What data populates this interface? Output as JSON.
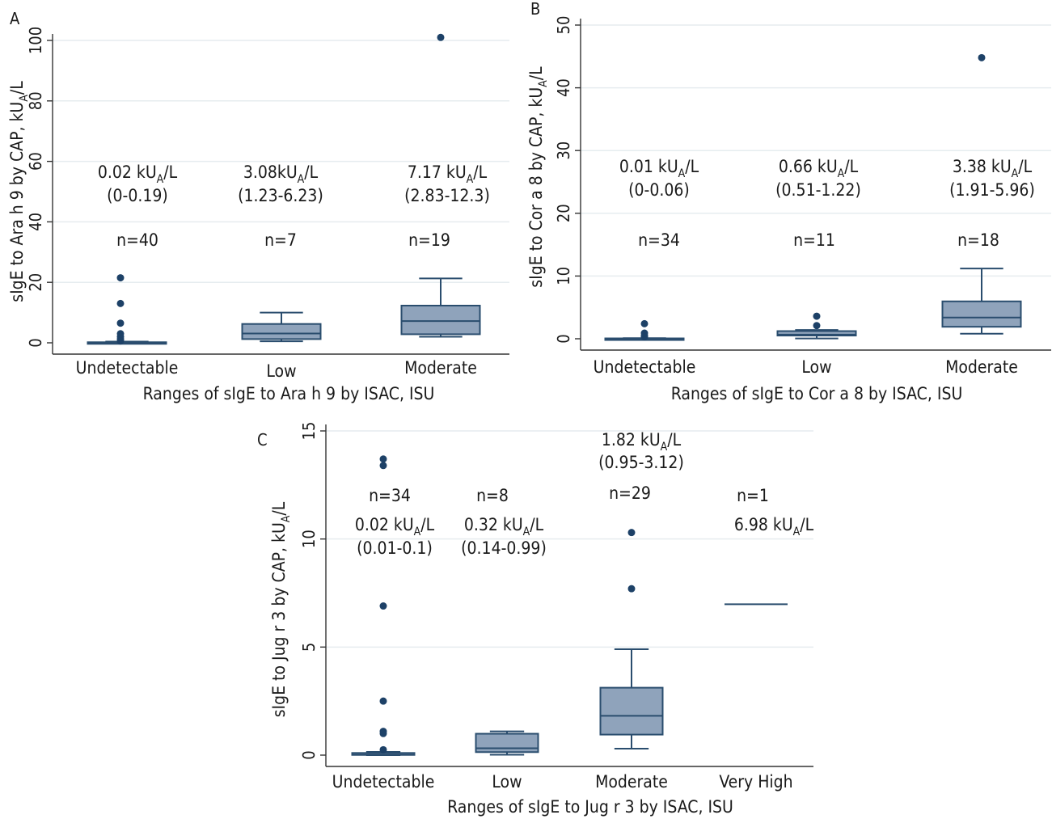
{
  "chart_data": [
    {
      "type": "box",
      "panel": "A",
      "xlabel": "Ranges of sIgE to Ara h 9 by ISAC, ISU",
      "ylabel": {
        "pre": "sIgE to Ara h 9 by CAP, kU",
        "sub": "A",
        "post": "/L"
      },
      "ylim": [
        0,
        100
      ],
      "yticks": [
        0,
        20,
        40,
        60,
        80,
        100
      ],
      "grid": true,
      "categories": [
        "Undetectable",
        "Low",
        "Moderate"
      ],
      "boxes": [
        {
          "category": "Undetectable",
          "n": "n=40",
          "median_label": {
            "pre": "0.02 kU",
            "sub": "A",
            "post": "/L"
          },
          "iqr_label": "(0-0.19)",
          "whisker_low": 0,
          "q1": 0,
          "median": 0.02,
          "q3": 0.19,
          "whisker_high": 0.4,
          "outliers": [
            21.5,
            13,
            6.5,
            3,
            2,
            1.2,
            0.6
          ]
        },
        {
          "category": "Low",
          "n": "n=7",
          "median_label": {
            "pre": "3.08kU",
            "sub": "A",
            "post": "/L"
          },
          "iqr_label": "(1.23-6.23)",
          "whisker_low": 0.5,
          "q1": 1.23,
          "median": 3.08,
          "q3": 6.23,
          "whisker_high": 10,
          "outliers": []
        },
        {
          "category": "Moderate",
          "n": "n=19",
          "median_label": {
            "pre": "7.17 kU",
            "sub": "A",
            "post": "/L"
          },
          "iqr_label": "(2.83-12.3)",
          "whisker_low": 2,
          "q1": 2.83,
          "median": 7.17,
          "q3": 12.3,
          "whisker_high": 21.3,
          "outliers": [
            101
          ]
        }
      ]
    },
    {
      "type": "box",
      "panel": "B",
      "xlabel": "Ranges of sIgE to Cor a 8 by ISAC, ISU",
      "ylabel": {
        "pre": "sIgE to Cor a 8 by CAP, kU",
        "sub": "A",
        "post": "/L"
      },
      "ylim": [
        0,
        50
      ],
      "yticks": [
        0,
        10,
        20,
        30,
        40,
        50
      ],
      "grid": true,
      "categories": [
        "Undetectable",
        "Low",
        "Moderate"
      ],
      "boxes": [
        {
          "category": "Undetectable",
          "n": "n=34",
          "median_label": {
            "pre": "0.01 kU",
            "sub": "A",
            "post": "/L"
          },
          "iqr_label": "(0-0.06)",
          "whisker_low": 0,
          "q1": 0,
          "median": 0.01,
          "q3": 0.06,
          "whisker_high": 0.1,
          "outliers": [
            2.4,
            0.9,
            0.5,
            0.3
          ]
        },
        {
          "category": "Low",
          "n": "n=11",
          "median_label": {
            "pre": "0.66 kU",
            "sub": "A",
            "post": "/L"
          },
          "iqr_label": "(0.51-1.22)",
          "whisker_low": 0.05,
          "q1": 0.51,
          "median": 0.66,
          "q3": 1.22,
          "whisker_high": 1.4,
          "outliers": [
            3.6,
            2.1
          ]
        },
        {
          "category": "Moderate",
          "n": "n=18",
          "median_label": {
            "pre": "3.38 kU",
            "sub": "A",
            "post": "/L"
          },
          "iqr_label": "(1.91-5.96)",
          "whisker_low": 0.8,
          "q1": 1.91,
          "median": 3.38,
          "q3": 5.96,
          "whisker_high": 11.2,
          "outliers": [
            44.8
          ]
        }
      ]
    },
    {
      "type": "box",
      "panel": "C",
      "xlabel": "Ranges of sIgE to Jug r 3 by ISAC, ISU",
      "ylabel": {
        "pre": "sIgE to Jug r 3 by CAP, kU",
        "sub": "A",
        "post": "/L"
      },
      "ylim": [
        0,
        15
      ],
      "yticks": [
        0,
        5,
        10,
        15
      ],
      "grid": true,
      "categories": [
        "Undetectable",
        "Low",
        "Moderate",
        "Very High"
      ],
      "boxes": [
        {
          "category": "Undetectable",
          "n": "n=34",
          "median_label": {
            "pre": "0.02 kU",
            "sub": "A",
            "post": "/L"
          },
          "iqr_label": "(0.01-0.1)",
          "whisker_low": 0,
          "q1": 0.01,
          "median": 0.02,
          "q3": 0.1,
          "whisker_high": 0.15,
          "outliers": [
            13.7,
            13.4,
            6.9,
            2.5,
            1.1,
            1.0,
            0.25
          ]
        },
        {
          "category": "Low",
          "n": "n=8",
          "median_label": {
            "pre": "0.32 kU",
            "sub": "A",
            "post": "/L"
          },
          "iqr_label": "(0.14-0.99)",
          "whisker_low": 0.02,
          "q1": 0.14,
          "median": 0.32,
          "q3": 0.99,
          "whisker_high": 1.1,
          "outliers": []
        },
        {
          "category": "Moderate",
          "n": "n=29",
          "median_label": {
            "pre": "1.82 kU",
            "sub": "A",
            "post": "/L"
          },
          "iqr_label": "(0.95-3.12)",
          "whisker_low": 0.3,
          "q1": 0.95,
          "median": 1.82,
          "q3": 3.12,
          "whisker_high": 4.9,
          "outliers": [
            10.3,
            7.7
          ]
        },
        {
          "category": "Very High",
          "n": "n=1",
          "median_label": {
            "pre": "6.98 kU",
            "sub": "A",
            "post": "/L"
          },
          "iqr_label": "",
          "whisker_low": 6.98,
          "q1": 6.98,
          "median": 6.98,
          "q3": 6.98,
          "whisker_high": 6.98,
          "outliers": []
        }
      ]
    }
  ]
}
